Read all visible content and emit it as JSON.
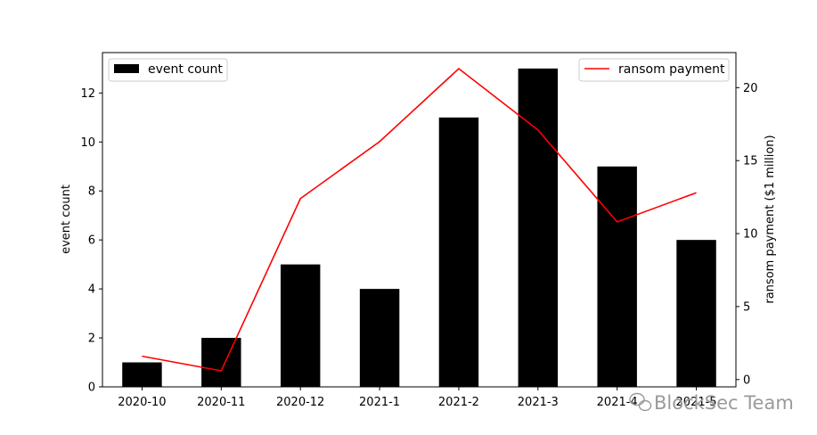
{
  "chart_data": {
    "type": "bar+line",
    "categories": [
      "2020-10",
      "2020-11",
      "2020-12",
      "2021-1",
      "2021-2",
      "2021-3",
      "2021-4",
      "2021-5"
    ],
    "series": [
      {
        "name": "event count",
        "type": "bar",
        "axis": "left",
        "color": "#000000",
        "values": [
          1,
          2,
          5,
          4,
          11,
          13,
          9,
          6
        ]
      },
      {
        "name": "ransom payment",
        "type": "line",
        "axis": "right",
        "color": "#ff0000",
        "values": [
          1.6,
          0.6,
          12.4,
          16.3,
          21.3,
          17.1,
          10.8,
          12.8
        ]
      }
    ],
    "ylabel_left": "event count",
    "ylabel_right": "ransom payment ($1 million)",
    "ylim_left": [
      0,
      13.65
    ],
    "ylim_right": [
      -0.5,
      22.4
    ],
    "yticks_left": [
      0,
      2,
      4,
      6,
      8,
      10,
      12
    ],
    "yticks_right": [
      0,
      5,
      10,
      15,
      20
    ],
    "legend_left": "top-left",
    "legend_right": "top-right",
    "grid": false
  },
  "watermark": {
    "text": "BlockSec Team",
    "icon": "wechat-icon"
  }
}
